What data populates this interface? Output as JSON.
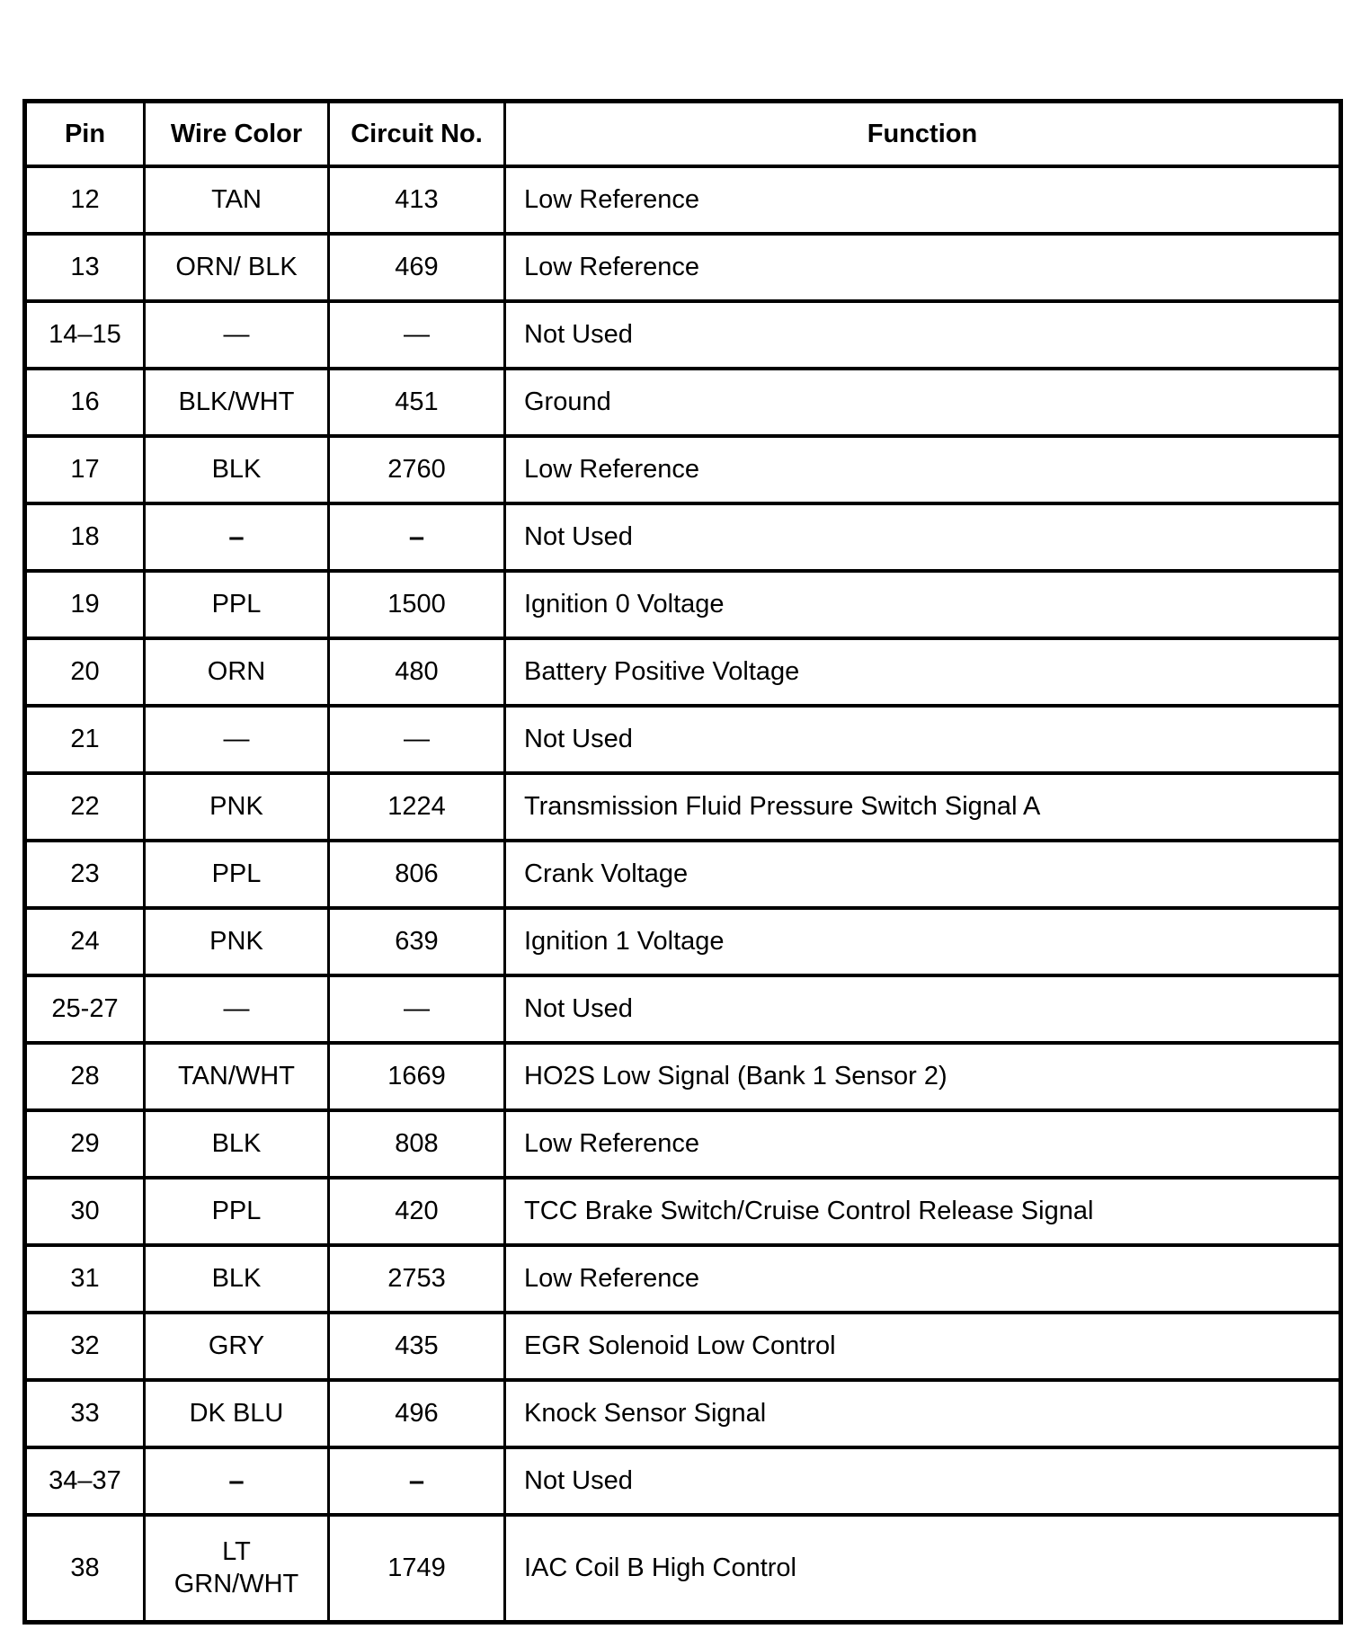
{
  "page": {
    "background_color": "#ffffff",
    "text_color": "#000000"
  },
  "table": {
    "headers": {
      "pin": "Pin",
      "wire_color": "Wire Color",
      "circuit_no": "Circuit No.",
      "function": "Function"
    },
    "rows": [
      {
        "pin": "12",
        "wire_color": "TAN",
        "circuit_no": "413",
        "function": "Low Reference"
      },
      {
        "pin": "13",
        "wire_color": "ORN/ BLK",
        "circuit_no": "469",
        "function": "Low Reference"
      },
      {
        "pin": "14–15",
        "wire_color": "—",
        "circuit_no": "—",
        "function": "Not Used"
      },
      {
        "pin": "16",
        "wire_color": "BLK/WHT",
        "circuit_no": "451",
        "function": "Ground"
      },
      {
        "pin": "17",
        "wire_color": "BLK",
        "circuit_no": "2760",
        "function": "Low Reference"
      },
      {
        "pin": "18",
        "wire_color": "–",
        "circuit_no": "–",
        "function": "Not Used"
      },
      {
        "pin": "19",
        "wire_color": "PPL",
        "circuit_no": "1500",
        "function": "Ignition 0 Voltage"
      },
      {
        "pin": "20",
        "wire_color": "ORN",
        "circuit_no": "480",
        "function": "Battery Positive Voltage"
      },
      {
        "pin": "21",
        "wire_color": "—",
        "circuit_no": "—",
        "function": "Not Used"
      },
      {
        "pin": "22",
        "wire_color": "PNK",
        "circuit_no": "1224",
        "function": "Transmission Fluid Pressure Switch Signal A"
      },
      {
        "pin": "23",
        "wire_color": "PPL",
        "circuit_no": "806",
        "function": "Crank Voltage"
      },
      {
        "pin": "24",
        "wire_color": "PNK",
        "circuit_no": "639",
        "function": "Ignition 1 Voltage"
      },
      {
        "pin": "25-27",
        "wire_color": "—",
        "circuit_no": "—",
        "function": "Not Used"
      },
      {
        "pin": "28",
        "wire_color": "TAN/WHT",
        "circuit_no": "1669",
        "function": "HO2S Low Signal (Bank 1 Sensor 2)"
      },
      {
        "pin": "29",
        "wire_color": "BLK",
        "circuit_no": "808",
        "function": "Low Reference"
      },
      {
        "pin": "30",
        "wire_color": "PPL",
        "circuit_no": "420",
        "function": "TCC Brake Switch/Cruise Control Release Signal"
      },
      {
        "pin": "31",
        "wire_color": "BLK",
        "circuit_no": "2753",
        "function": "Low Reference"
      },
      {
        "pin": "32",
        "wire_color": "GRY",
        "circuit_no": "435",
        "function": "EGR Solenoid Low Control"
      },
      {
        "pin": "33",
        "wire_color": "DK BLU",
        "circuit_no": "496",
        "function": "Knock Sensor Signal"
      },
      {
        "pin": "34–37",
        "wire_color": "–",
        "circuit_no": "–",
        "function": "Not Used"
      },
      {
        "pin": "38",
        "wire_color": "LT\nGRN/WHT",
        "circuit_no": "1749",
        "function": "IAC Coil B High Control"
      }
    ]
  }
}
